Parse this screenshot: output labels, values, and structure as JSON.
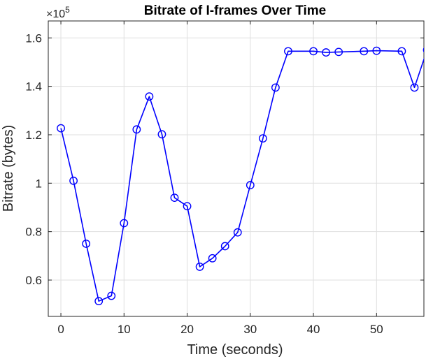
{
  "chart_data": {
    "type": "line",
    "title": "Bitrate of I-frames Over Time",
    "xlabel": "Time (seconds)",
    "ylabel": "Bitrate (bytes)",
    "y_exponent_base": "×10",
    "y_exponent_power": "5",
    "xlim": [
      -2,
      57.5
    ],
    "ylim": [
      0.45,
      1.67
    ],
    "grid": true,
    "x_ticks": [
      0,
      10,
      20,
      30,
      40,
      50
    ],
    "x_tick_labels": [
      "0",
      "10",
      "20",
      "30",
      "40",
      "50"
    ],
    "y_ticks": [
      0.6,
      0.8,
      1.0,
      1.2,
      1.4,
      1.6
    ],
    "y_tick_labels": [
      "0.6",
      "0.8",
      "1",
      "1.2",
      "1.4",
      "1.6"
    ],
    "series": [
      {
        "color": "#0000ff",
        "marker": "circle",
        "x": [
          0,
          2,
          4,
          6,
          8,
          10,
          12,
          14,
          16,
          18,
          20,
          22,
          24,
          26,
          28,
          30,
          32,
          34,
          36,
          40,
          42,
          44,
          48,
          50,
          54,
          56,
          58
        ],
        "y": [
          1.227,
          1.01,
          0.75,
          0.513,
          0.535,
          0.835,
          1.222,
          1.358,
          1.202,
          0.94,
          0.905,
          0.655,
          0.69,
          0.74,
          0.797,
          0.992,
          1.185,
          1.395,
          1.545,
          1.545,
          1.54,
          1.542,
          1.545,
          1.547,
          1.545,
          1.395,
          1.55
        ]
      }
    ]
  }
}
